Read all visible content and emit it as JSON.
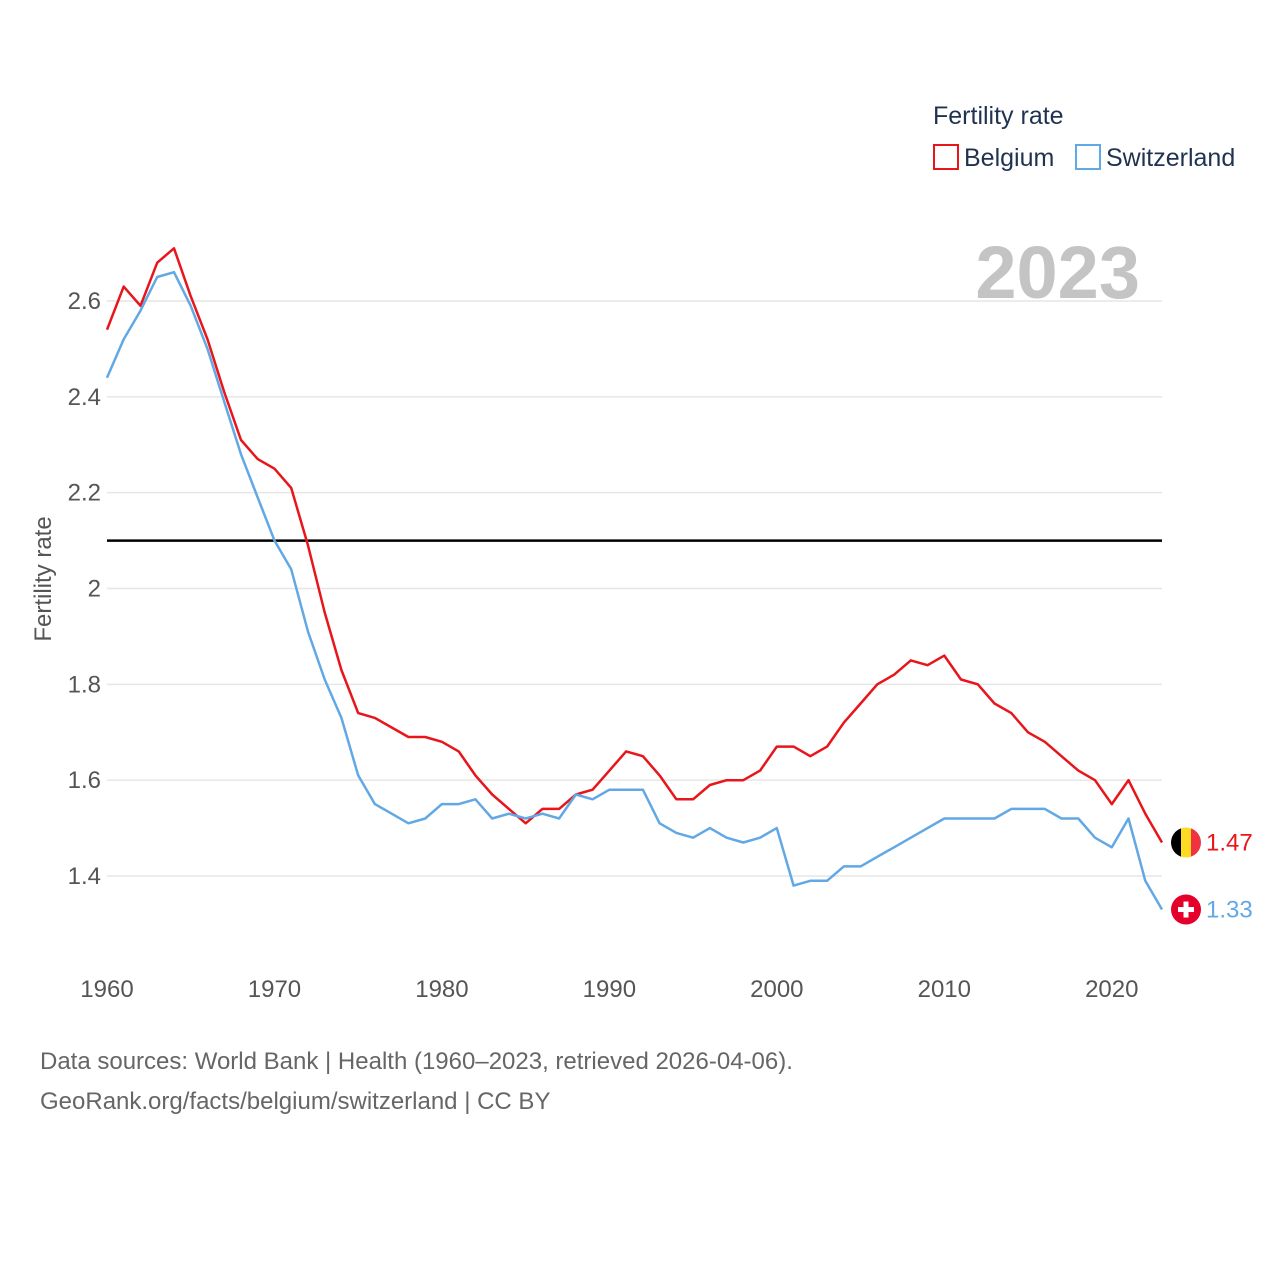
{
  "legend": {
    "title": "Fertility rate",
    "items": [
      {
        "label": "Belgium",
        "color": "#e8151b"
      },
      {
        "label": "Switzerland",
        "color": "#62a8e5"
      }
    ]
  },
  "year_display": "2023",
  "chart_data": {
    "type": "line",
    "title": "Fertility rate",
    "xlabel": "",
    "ylabel": "Fertility rate",
    "xlim": [
      1960,
      2023
    ],
    "ylim": [
      1.3,
      2.7
    ],
    "x_ticks": [
      1960,
      1970,
      1980,
      1990,
      2000,
      2010,
      2020
    ],
    "y_ticks": [
      1.4,
      1.6,
      1.8,
      2.0,
      2.2,
      2.4,
      2.6
    ],
    "y_tick_labels": [
      "1.4",
      "1.6",
      "1.8",
      "2",
      "2.2",
      "2.4",
      "2.6"
    ],
    "grid": true,
    "reference_line": {
      "y": 2.1,
      "color": "#000000"
    },
    "x": [
      1960,
      1961,
      1962,
      1963,
      1964,
      1965,
      1966,
      1967,
      1968,
      1969,
      1970,
      1971,
      1972,
      1973,
      1974,
      1975,
      1976,
      1977,
      1978,
      1979,
      1980,
      1981,
      1982,
      1983,
      1984,
      1985,
      1986,
      1987,
      1988,
      1989,
      1990,
      1991,
      1992,
      1993,
      1994,
      1995,
      1996,
      1997,
      1998,
      1999,
      2000,
      2001,
      2002,
      2003,
      2004,
      2005,
      2006,
      2007,
      2008,
      2009,
      2010,
      2011,
      2012,
      2013,
      2014,
      2015,
      2016,
      2017,
      2018,
      2019,
      2020,
      2021,
      2022,
      2023
    ],
    "series": [
      {
        "name": "Belgium",
        "color": "#e8151b",
        "end_label": "1.47",
        "values": [
          2.54,
          2.63,
          2.59,
          2.68,
          2.71,
          2.61,
          2.52,
          2.41,
          2.31,
          2.27,
          2.25,
          2.21,
          2.09,
          1.95,
          1.83,
          1.74,
          1.73,
          1.71,
          1.69,
          1.69,
          1.68,
          1.66,
          1.61,
          1.57,
          1.54,
          1.51,
          1.54,
          1.54,
          1.57,
          1.58,
          1.62,
          1.66,
          1.65,
          1.61,
          1.56,
          1.56,
          1.59,
          1.6,
          1.6,
          1.62,
          1.67,
          1.67,
          1.65,
          1.67,
          1.72,
          1.76,
          1.8,
          1.82,
          1.85,
          1.84,
          1.86,
          1.81,
          1.8,
          1.76,
          1.74,
          1.7,
          1.68,
          1.65,
          1.62,
          1.6,
          1.55,
          1.6,
          1.53,
          1.47
        ]
      },
      {
        "name": "Switzerland",
        "color": "#62a8e5",
        "end_label": "1.33",
        "values": [
          2.44,
          2.52,
          2.58,
          2.65,
          2.66,
          2.59,
          2.5,
          2.39,
          2.28,
          2.19,
          2.1,
          2.04,
          1.91,
          1.81,
          1.73,
          1.61,
          1.55,
          1.53,
          1.51,
          1.52,
          1.55,
          1.55,
          1.56,
          1.52,
          1.53,
          1.52,
          1.53,
          1.52,
          1.57,
          1.56,
          1.58,
          1.58,
          1.58,
          1.51,
          1.49,
          1.48,
          1.5,
          1.48,
          1.47,
          1.48,
          1.5,
          1.38,
          1.39,
          1.39,
          1.42,
          1.42,
          1.44,
          1.46,
          1.48,
          1.5,
          1.52,
          1.52,
          1.52,
          1.52,
          1.54,
          1.54,
          1.54,
          1.52,
          1.52,
          1.48,
          1.46,
          1.52,
          1.39,
          1.33
        ]
      }
    ]
  },
  "footer": {
    "line1": "Data sources: World Bank | Health (1960–2023, retrieved 2026-04-06).",
    "line2": "GeoRank.org/facts/belgium/switzerland | CC BY"
  }
}
